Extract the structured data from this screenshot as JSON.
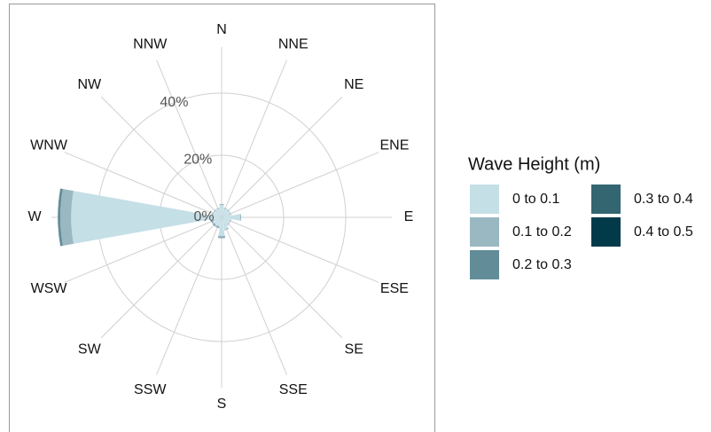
{
  "chart_data": {
    "type": "windrose",
    "legend_title": "Wave Height (m)",
    "categories": [
      "N",
      "NNE",
      "NE",
      "ENE",
      "E",
      "ESE",
      "SE",
      "SSE",
      "S",
      "SSW",
      "SW",
      "WSW",
      "W",
      "WNW",
      "NW",
      "NNW"
    ],
    "series": [
      {
        "name": "0 to 0.1",
        "color": "#c5dfe6",
        "values": [
          4,
          3,
          3,
          3,
          6,
          3,
          3,
          4,
          6,
          3,
          3,
          3,
          48.5,
          3,
          3,
          3
        ]
      },
      {
        "name": "0.1 to 0.2",
        "color": "#9ab8c1",
        "values": [
          0.3,
          0.2,
          0.2,
          0.2,
          0.3,
          0.2,
          0.2,
          0.3,
          0.5,
          0.4,
          0.4,
          0.4,
          3.5,
          0.3,
          0.2,
          0.2
        ]
      },
      {
        "name": "0.2 to 0.3",
        "color": "#628d98",
        "values": [
          0,
          0,
          0,
          0,
          0,
          0,
          0,
          0,
          0.2,
          0.2,
          0.2,
          0.2,
          0.8,
          0,
          0,
          0
        ]
      },
      {
        "name": "0.3 to 0.4",
        "color": "#336671",
        "values": [
          0,
          0,
          0,
          0,
          0,
          0,
          0,
          0,
          0,
          0,
          0,
          0,
          0,
          0,
          0,
          0
        ]
      },
      {
        "name": "0.4 to 0.5",
        "color": "#023a4a",
        "values": [
          0,
          0,
          0,
          0,
          0,
          0,
          0,
          0,
          0,
          0,
          0,
          0,
          0,
          0,
          0,
          0
        ]
      }
    ],
    "ylim": [
      0,
      52
    ],
    "yticks": [
      {
        "value": 0,
        "label": "0%"
      },
      {
        "value": 20,
        "label": "20%"
      },
      {
        "value": 40,
        "label": "40%"
      }
    ],
    "grid": true,
    "legend": "right"
  }
}
